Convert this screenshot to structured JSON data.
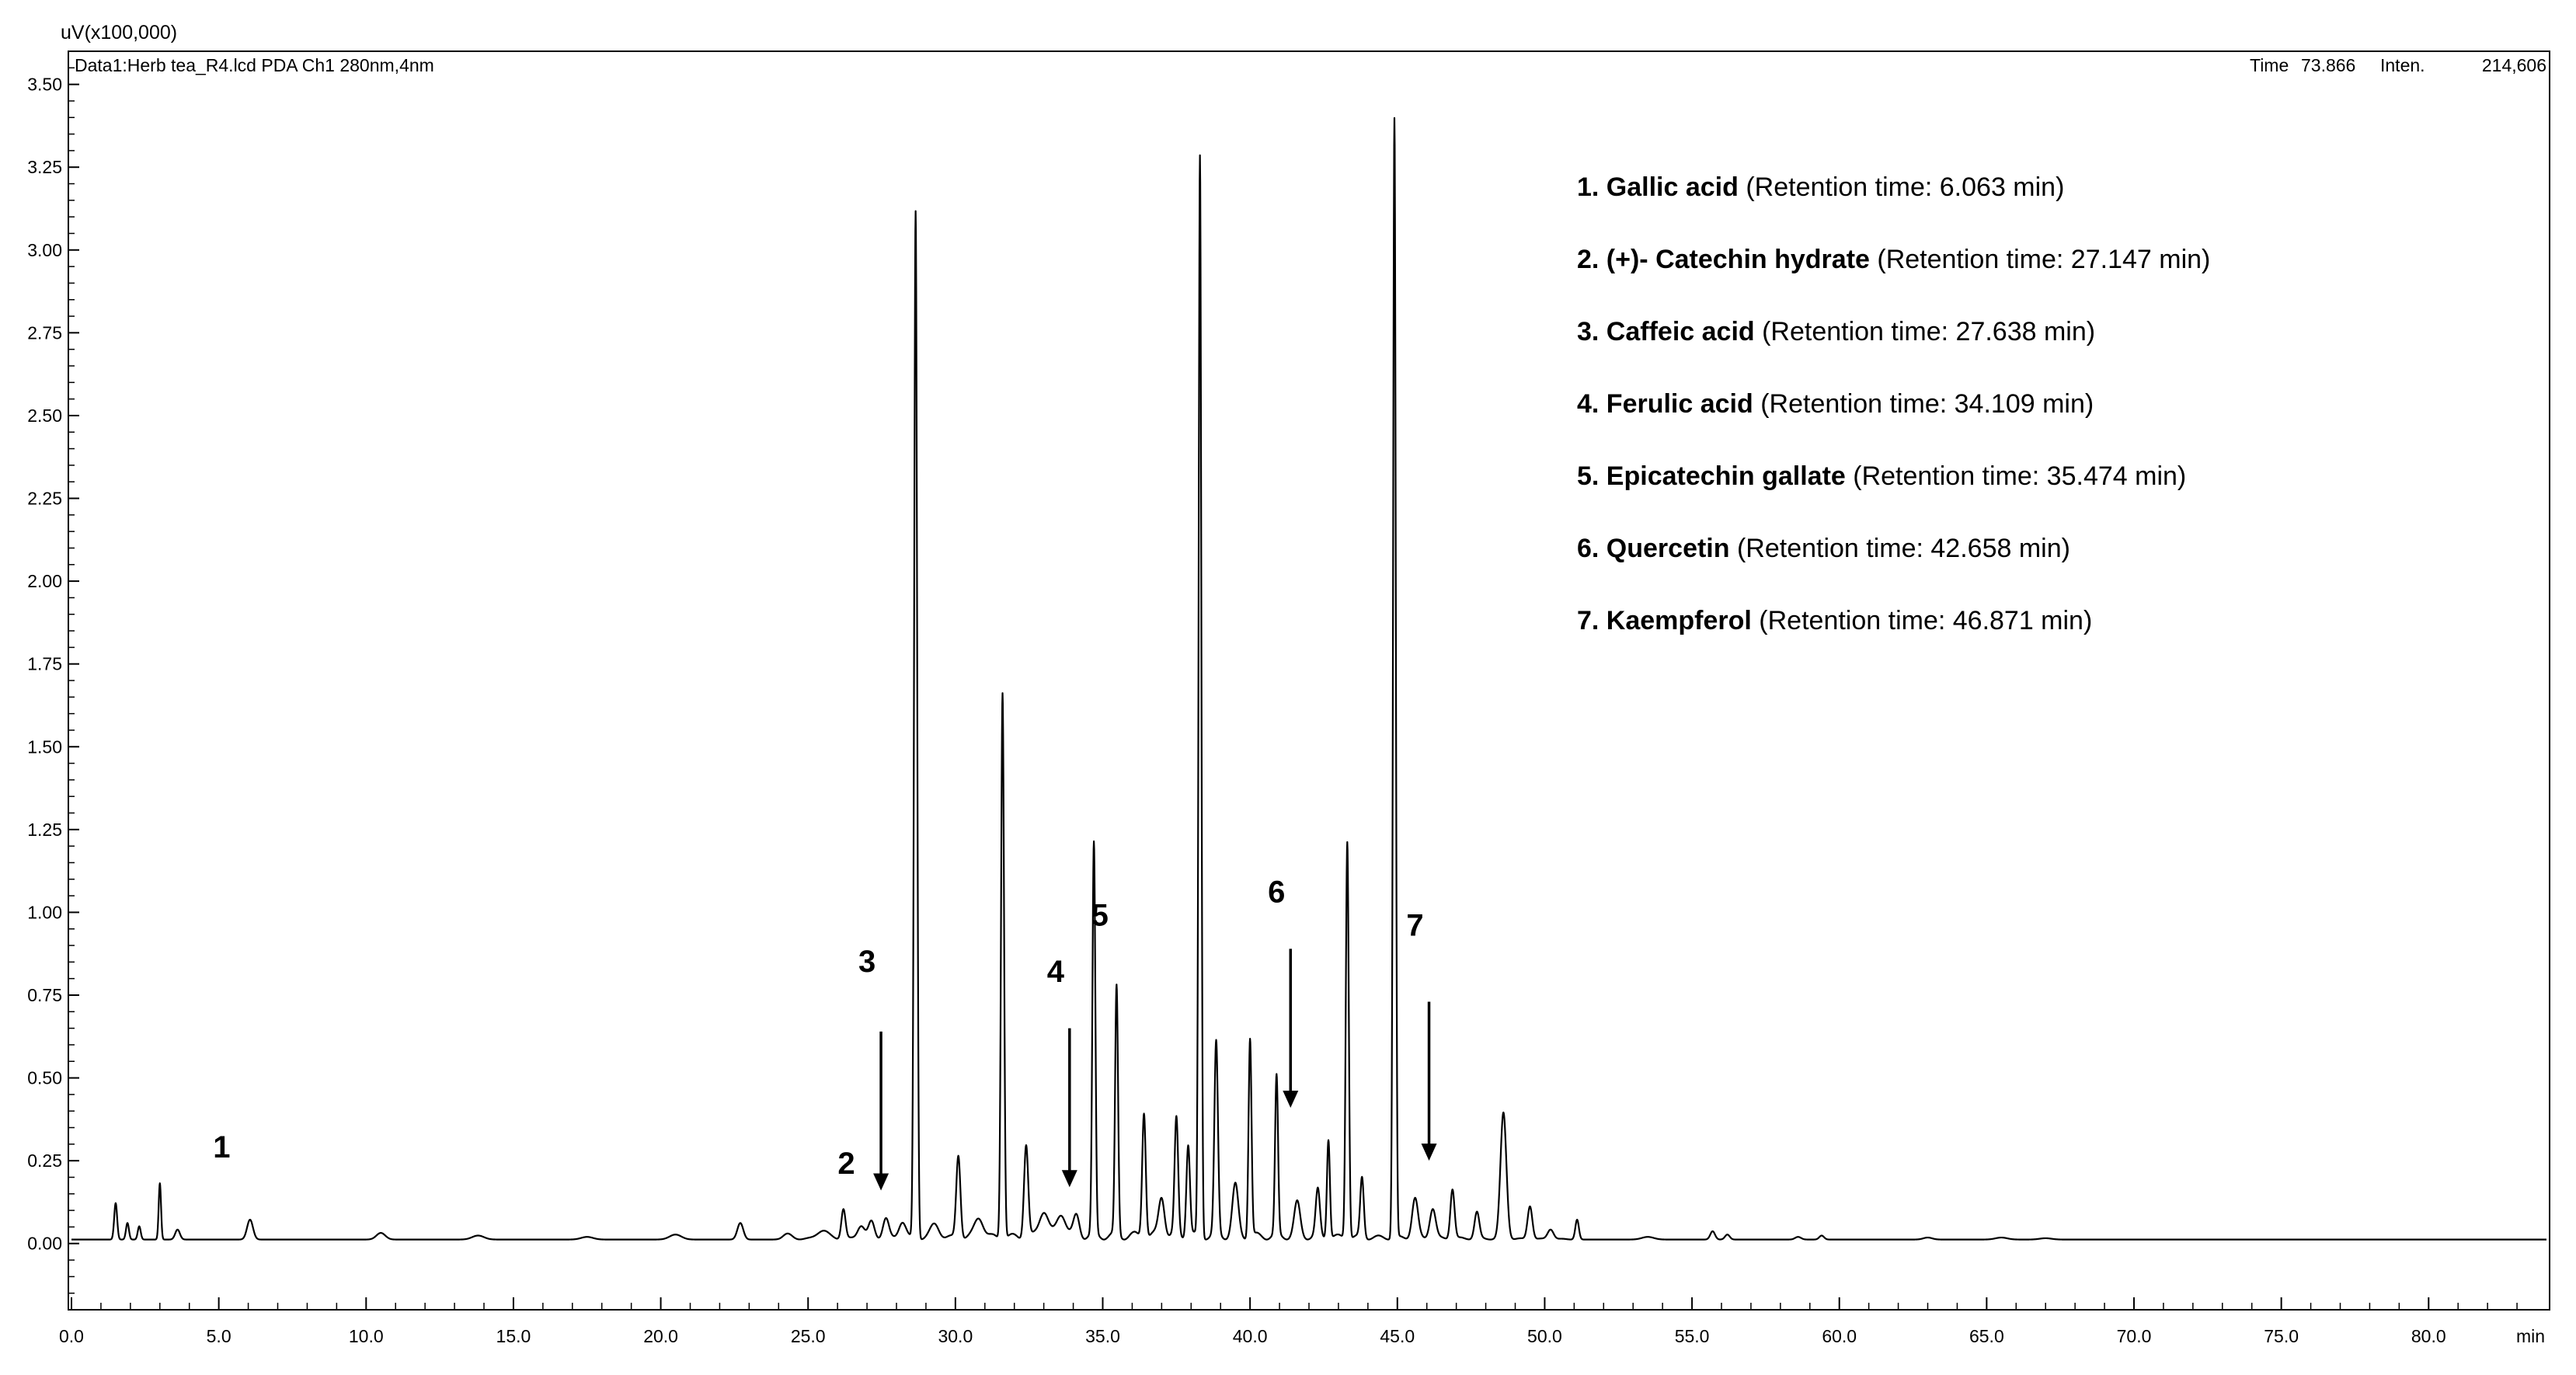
{
  "header": {
    "unit_label": "uV(x100,000)",
    "data_label": "Data1:Herb tea_R4.lcd PDA Ch1 280nm,4nm",
    "time_label": "Time",
    "time_value": "73.866",
    "inten_label": "Inten.",
    "inten_value": "214,606"
  },
  "legend": [
    {
      "prefix": "1. ",
      "name": "Gallic acid",
      "detail": " (Retention time: 6.063 min)"
    },
    {
      "prefix": "2. ",
      "name": "(+)- Catechin hydrate",
      "detail": " (Retention time: 27.147 min)"
    },
    {
      "prefix": "3. ",
      "name": "Caffeic acid",
      "detail": " (Retention time: 27.638 min)"
    },
    {
      "prefix": "4. ",
      "name": "Ferulic acid",
      "detail": " (Retention time: 34.109 min)"
    },
    {
      "prefix": "5. ",
      "name": "Epicatechin gallate",
      "detail": " (Retention time: 35.474 min)"
    },
    {
      "prefix": "6. ",
      "name": "Quercetin",
      "detail": " (Retention time: 42.658 min)"
    },
    {
      "prefix": "7. ",
      "name": "Kaempferol",
      "detail": " (Retention time: 46.871 min)"
    }
  ],
  "chart_data": {
    "type": "line",
    "xlabel": "min",
    "ylabel": "uV(x100,000)",
    "xlim": [
      0,
      84
    ],
    "ylim": [
      -0.2,
      3.6
    ],
    "xticks": [
      0,
      5,
      10,
      15,
      20,
      25,
      30,
      35,
      40,
      45,
      50,
      55,
      60,
      65,
      70,
      75,
      80
    ],
    "xtick_labels": [
      "0.0",
      "5.0",
      "10.0",
      "15.0",
      "20.0",
      "25.0",
      "30.0",
      "35.0",
      "40.0",
      "45.0",
      "50.0",
      "55.0",
      "60.0",
      "65.0",
      "70.0",
      "75.0",
      "80.0"
    ],
    "yticks": [
      0,
      0.25,
      0.5,
      0.75,
      1.0,
      1.25,
      1.5,
      1.75,
      2.0,
      2.25,
      2.5,
      2.75,
      3.0,
      3.25,
      3.5
    ],
    "ytick_labels": [
      "0.00",
      "0.25",
      "0.50",
      "0.75",
      "1.00",
      "1.25",
      "1.50",
      "1.75",
      "2.00",
      "2.25",
      "2.50",
      "2.75",
      "3.00",
      "3.25",
      "3.50"
    ],
    "grid": false,
    "baseline": 0.012,
    "peaks": [
      [
        1.5,
        0.11,
        0.05
      ],
      [
        1.9,
        0.05,
        0.05
      ],
      [
        2.3,
        0.04,
        0.05
      ],
      [
        3.0,
        0.17,
        0.04
      ],
      [
        3.6,
        0.03,
        0.08
      ],
      [
        6.06,
        0.06,
        0.1
      ],
      [
        10.5,
        0.02,
        0.15
      ],
      [
        13.8,
        0.012,
        0.2
      ],
      [
        17.5,
        0.008,
        0.2
      ],
      [
        20.5,
        0.015,
        0.2
      ],
      [
        22.7,
        0.05,
        0.1
      ],
      [
        24.3,
        0.015,
        0.15
      ],
      [
        25.5,
        0.025,
        0.2
      ],
      [
        26.2,
        0.09,
        0.07
      ],
      [
        26.8,
        0.04,
        0.12
      ],
      [
        27.15,
        0.05,
        0.1
      ],
      [
        27.64,
        0.06,
        0.1
      ],
      [
        28.2,
        0.05,
        0.12
      ],
      [
        28.65,
        3.1,
        0.05
      ],
      [
        29.3,
        0.04,
        0.15
      ],
      [
        30.1,
        0.25,
        0.07
      ],
      [
        30.8,
        0.06,
        0.15
      ],
      [
        31.6,
        1.65,
        0.05
      ],
      [
        32.4,
        0.28,
        0.07
      ],
      [
        33.0,
        0.08,
        0.15
      ],
      [
        33.6,
        0.07,
        0.15
      ],
      [
        34.11,
        0.06,
        0.1
      ],
      [
        34.7,
        1.18,
        0.05
      ],
      [
        35.47,
        0.75,
        0.05
      ],
      [
        36.4,
        0.38,
        0.06
      ],
      [
        37.0,
        0.12,
        0.1
      ],
      [
        37.5,
        0.35,
        0.06
      ],
      [
        37.9,
        0.28,
        0.06
      ],
      [
        38.3,
        3.26,
        0.045
      ],
      [
        38.85,
        0.58,
        0.06
      ],
      [
        39.5,
        0.15,
        0.1
      ],
      [
        40.0,
        0.6,
        0.05
      ],
      [
        40.9,
        0.48,
        0.05
      ],
      [
        41.6,
        0.1,
        0.1
      ],
      [
        42.3,
        0.14,
        0.07
      ],
      [
        42.66,
        0.3,
        0.05
      ],
      [
        43.3,
        1.2,
        0.05
      ],
      [
        43.8,
        0.18,
        0.06
      ],
      [
        44.9,
        3.38,
        0.045
      ],
      [
        45.6,
        0.12,
        0.1
      ],
      [
        46.2,
        0.09,
        0.1
      ],
      [
        46.87,
        0.15,
        0.07
      ],
      [
        47.7,
        0.08,
        0.08
      ],
      [
        48.6,
        0.38,
        0.1
      ],
      [
        49.5,
        0.1,
        0.08
      ],
      [
        50.2,
        0.03,
        0.1
      ],
      [
        51.1,
        0.06,
        0.06
      ],
      [
        53.5,
        0.008,
        0.2
      ],
      [
        55.7,
        0.025,
        0.08
      ],
      [
        56.2,
        0.015,
        0.08
      ],
      [
        58.6,
        0.008,
        0.1
      ],
      [
        59.4,
        0.012,
        0.08
      ],
      [
        63.0,
        0.006,
        0.15
      ],
      [
        65.5,
        0.006,
        0.2
      ],
      [
        67.0,
        0.004,
        0.2
      ]
    ],
    "annotations": [
      {
        "label": "1",
        "x": 5.1,
        "label_y": 0.26
      },
      {
        "label": "2",
        "x": 26.3,
        "label_y": 0.21
      },
      {
        "label": "3",
        "x": 27.0,
        "label_y": 0.82,
        "arrow_from_y": 0.64,
        "arrow_to_y": 0.16
      },
      {
        "label": "4",
        "x": 33.4,
        "label_y": 0.79,
        "arrow_from_y": 0.65,
        "arrow_to_y": 0.17
      },
      {
        "label": "5",
        "x": 34.9,
        "label_y": 0.96
      },
      {
        "label": "6",
        "x": 40.9,
        "label_y": 1.03,
        "arrow_from_y": 0.89,
        "arrow_to_y": 0.41
      },
      {
        "label": "7",
        "x": 45.6,
        "label_y": 0.93,
        "arrow_from_y": 0.73,
        "arrow_to_y": 0.25
      }
    ]
  }
}
